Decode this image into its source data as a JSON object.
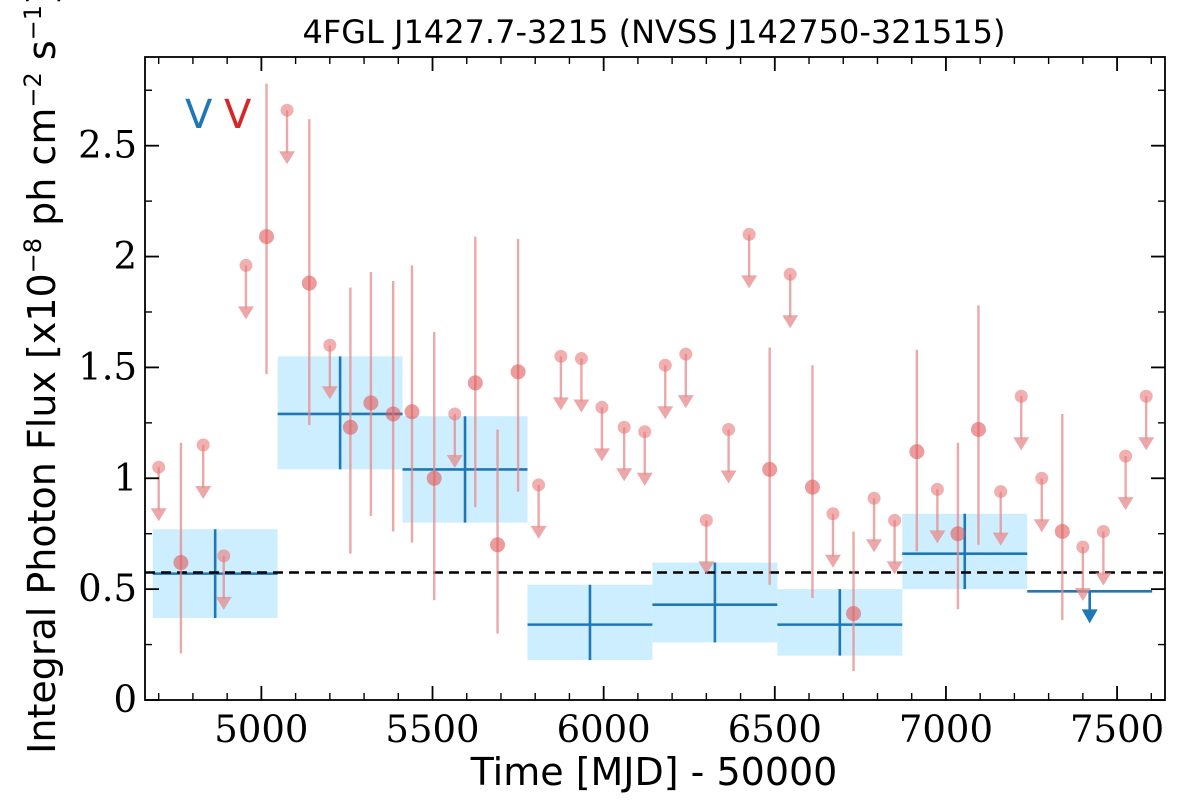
{
  "chart_data": {
    "type": "scatter",
    "title": "4FGL J1427.7-3215 (NVSS J142750-321515)",
    "xlabel": "Time [MJD] - 50000",
    "ylabel": "Integral Photon Flux [x10",
    "ylabel_exp": "−8",
    "ylabel_mid": " ph cm",
    "ylabel_exp2": "−2",
    "ylabel_mid2": " s",
    "ylabel_exp3": "−1",
    "ylabel_end": "]",
    "xlim": [
      4660,
      7640
    ],
    "ylim": [
      0,
      2.9
    ],
    "xticks": [
      "5000",
      "5500",
      "6000",
      "6500",
      "7000",
      "7500"
    ],
    "yticks": [
      "0",
      "0.5",
      "1",
      "1.5",
      "2",
      "2.5"
    ],
    "reference_line": 0.575,
    "legend_glyph": "V",
    "colors": {
      "wide_bins": "#1f77b4",
      "wide_bins_fill": "#cdeeff",
      "narrow_bins": "#d62728",
      "reference_line": "#000000"
    },
    "series": [
      {
        "bin_width_days": 365,
        "points": [
          {
            "x": 4865,
            "y": 0.57,
            "ylo": 0.37,
            "yhi": 0.77
          },
          {
            "x": 5230,
            "y": 1.29,
            "ylo": 1.04,
            "yhi": 1.55
          },
          {
            "x": 5595,
            "y": 1.04,
            "ylo": 0.8,
            "yhi": 1.28
          },
          {
            "x": 5960,
            "y": 0.34,
            "ylo": 0.18,
            "yhi": 0.52
          },
          {
            "x": 6325,
            "y": 0.43,
            "ylo": 0.26,
            "yhi": 0.62
          },
          {
            "x": 6690,
            "y": 0.34,
            "ylo": 0.2,
            "yhi": 0.5
          },
          {
            "x": 7055,
            "y": 0.66,
            "ylo": 0.5,
            "yhi": 0.84
          },
          {
            "x": 7420,
            "y": 0.49,
            "upper_limit": true
          }
        ]
      },
      {
        "points": [
          {
            "x": 4700,
            "y": 1.05,
            "upper_limit": true
          },
          {
            "x": 4765,
            "y": 0.62,
            "ylo": 0.21,
            "yhi": 1.16
          },
          {
            "x": 4830,
            "y": 1.15,
            "upper_limit": true
          },
          {
            "x": 4890,
            "y": 0.65,
            "upper_limit": true
          },
          {
            "x": 4955,
            "y": 1.96,
            "upper_limit": true
          },
          {
            "x": 5015,
            "y": 2.09,
            "ylo": 1.47,
            "yhi": 2.78
          },
          {
            "x": 5075,
            "y": 2.66,
            "upper_limit": true
          },
          {
            "x": 5140,
            "y": 1.88,
            "ylo": 1.24,
            "yhi": 2.62
          },
          {
            "x": 5200,
            "y": 1.6,
            "upper_limit": true
          },
          {
            "x": 5260,
            "y": 1.23,
            "ylo": 0.66,
            "yhi": 1.86
          },
          {
            "x": 5320,
            "y": 1.34,
            "ylo": 0.83,
            "yhi": 1.93
          },
          {
            "x": 5385,
            "y": 1.29,
            "ylo": 0.76,
            "yhi": 1.89
          },
          {
            "x": 5440,
            "y": 1.3,
            "ylo": 0.71,
            "yhi": 1.96
          },
          {
            "x": 5505,
            "y": 1.0,
            "ylo": 0.45,
            "yhi": 1.66
          },
          {
            "x": 5565,
            "y": 1.29,
            "upper_limit": true
          },
          {
            "x": 5625,
            "y": 1.43,
            "ylo": 0.87,
            "yhi": 2.09
          },
          {
            "x": 5690,
            "y": 0.7,
            "ylo": 0.3,
            "yhi": 1.22
          },
          {
            "x": 5750,
            "y": 1.48,
            "ylo": 0.94,
            "yhi": 2.08
          },
          {
            "x": 5810,
            "y": 0.97,
            "upper_limit": true
          },
          {
            "x": 5875,
            "y": 1.55,
            "upper_limit": true
          },
          {
            "x": 5935,
            "y": 1.54,
            "upper_limit": true
          },
          {
            "x": 5995,
            "y": 1.32,
            "upper_limit": true
          },
          {
            "x": 6060,
            "y": 1.23,
            "upper_limit": true
          },
          {
            "x": 6120,
            "y": 1.21,
            "upper_limit": true
          },
          {
            "x": 6180,
            "y": 1.51,
            "upper_limit": true
          },
          {
            "x": 6240,
            "y": 1.56,
            "upper_limit": true
          },
          {
            "x": 6300,
            "y": 0.81,
            "upper_limit": true
          },
          {
            "x": 6365,
            "y": 1.22,
            "upper_limit": true
          },
          {
            "x": 6425,
            "y": 2.1,
            "upper_limit": true
          },
          {
            "x": 6485,
            "y": 1.04,
            "ylo": 0.52,
            "yhi": 1.59
          },
          {
            "x": 6545,
            "y": 1.92,
            "upper_limit": true
          },
          {
            "x": 6610,
            "y": 0.96,
            "ylo": 0.46,
            "yhi": 1.51
          },
          {
            "x": 6670,
            "y": 0.84,
            "upper_limit": true
          },
          {
            "x": 6730,
            "y": 0.39,
            "ylo": 0.13,
            "yhi": 0.76
          },
          {
            "x": 6790,
            "y": 0.91,
            "upper_limit": true
          },
          {
            "x": 6850,
            "y": 0.81,
            "upper_limit": true
          },
          {
            "x": 6915,
            "y": 1.12,
            "ylo": 0.67,
            "yhi": 1.58
          },
          {
            "x": 6975,
            "y": 0.95,
            "upper_limit": true
          },
          {
            "x": 7035,
            "y": 0.75,
            "ylo": 0.41,
            "yhi": 1.16
          },
          {
            "x": 7095,
            "y": 1.22,
            "ylo": 0.7,
            "yhi": 1.78
          },
          {
            "x": 7160,
            "y": 0.94,
            "upper_limit": true
          },
          {
            "x": 7220,
            "y": 1.37,
            "upper_limit": true
          },
          {
            "x": 7280,
            "y": 1.0,
            "upper_limit": true
          },
          {
            "x": 7340,
            "y": 0.76,
            "ylo": 0.36,
            "yhi": 1.29
          },
          {
            "x": 7400,
            "y": 0.69,
            "upper_limit": true
          },
          {
            "x": 7460,
            "y": 0.76,
            "upper_limit": true
          },
          {
            "x": 7525,
            "y": 1.1,
            "upper_limit": true
          },
          {
            "x": 7585,
            "y": 1.37,
            "upper_limit": true
          }
        ]
      }
    ]
  }
}
